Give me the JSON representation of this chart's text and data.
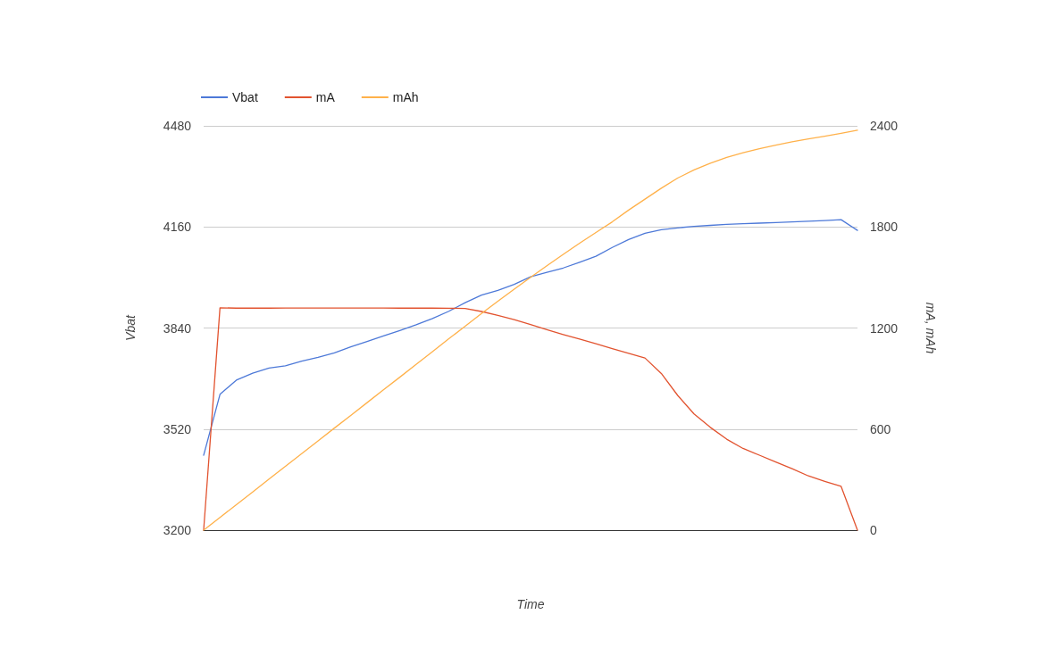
{
  "chart_data": {
    "type": "line",
    "xlabel": "Time",
    "ylabel": "Vbat",
    "y2label": "mA, mAh",
    "categories": [
      null,
      null,
      null,
      null,
      null,
      null,
      null,
      null,
      null,
      null,
      null,
      null,
      null,
      null,
      null,
      null,
      null,
      null,
      null,
      null,
      null,
      null,
      null,
      null,
      null,
      null,
      null,
      null,
      null,
      null,
      null,
      null,
      null,
      null,
      null,
      null,
      null,
      null,
      null,
      null,
      null
    ],
    "series": [
      {
        "name": "Vbat",
        "color": "#4d79d8",
        "values": [
          3437,
          3630,
          3675,
          3697,
          3713,
          3720,
          3735,
          3747,
          3761,
          3780,
          3797,
          3815,
          3832,
          3850,
          3870,
          3893,
          3920,
          3944,
          3959,
          3978,
          4002,
          4016,
          4030,
          4048,
          4067,
          4095,
          4120,
          4140,
          4151,
          4157,
          4162,
          4165,
          4168,
          4170,
          4172,
          4174,
          4176,
          4178,
          4180,
          4183,
          4149
        ]
      },
      {
        "name": "mA",
        "color": "#e2532f",
        "axis": "y2",
        "values": [
          0,
          1320,
          1318,
          1318,
          1318,
          1319,
          1319,
          1319,
          1319,
          1319,
          1319,
          1319,
          1318,
          1318,
          1318,
          1317,
          1316,
          1298,
          1275,
          1250,
          1220,
          1190,
          1161,
          1134,
          1106,
          1077,
          1050,
          1022,
          930,
          800,
          690,
          610,
          540,
          485,
          445,
          405,
          365,
          322,
          290,
          260,
          0
        ]
      },
      {
        "name": "mAh",
        "color": "#ffb14a",
        "axis": "y2",
        "values": [
          0,
          76,
          151,
          227,
          303,
          379,
          454,
          530,
          606,
          681,
          757,
          833,
          908,
          984,
          1060,
          1136,
          1211,
          1286,
          1359,
          1431,
          1501,
          1570,
          1637,
          1703,
          1767,
          1830,
          1900,
          1965,
          2030,
          2090,
          2138,
          2178,
          2212,
          2240,
          2264,
          2286,
          2305,
          2322,
          2338,
          2356,
          2374
        ]
      }
    ],
    "ylim": [
      3200,
      4480
    ],
    "yticks": [
      3200,
      3520,
      3840,
      4160,
      4480
    ],
    "y2lim": [
      0,
      2400
    ],
    "y2ticks": [
      0,
      600,
      1200,
      1800,
      2400
    ],
    "grid": "y",
    "legend": "top left",
    "marker": "none",
    "line_style": "solid"
  }
}
